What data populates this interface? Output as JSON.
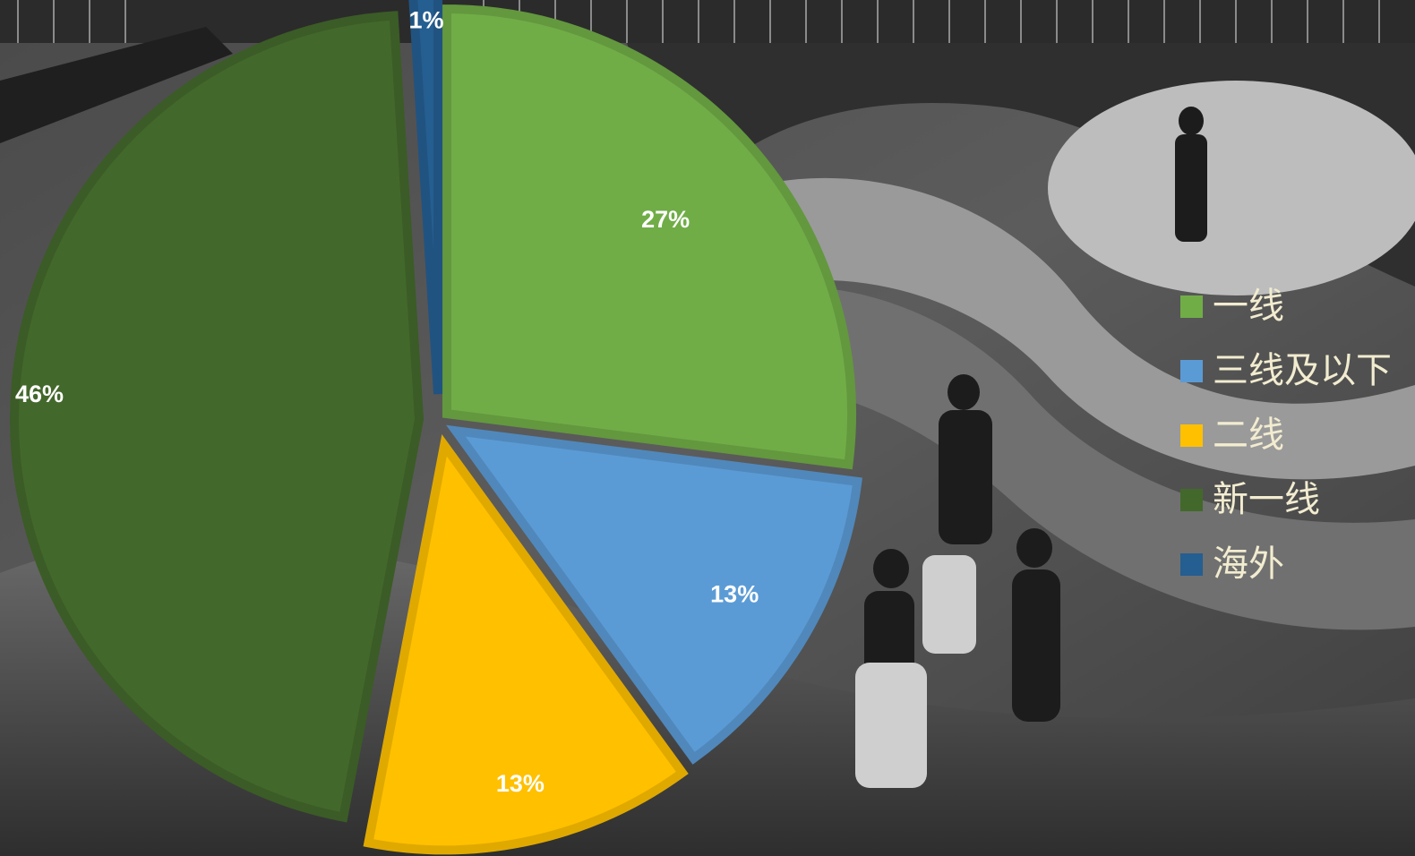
{
  "chart_data": {
    "type": "pie",
    "title": "",
    "slices": [
      {
        "label": "一线",
        "value": 27,
        "display": "27%",
        "color": "#70ad47"
      },
      {
        "label": "三线及以下",
        "value": 13,
        "display": "13%",
        "color": "#5b9bd5"
      },
      {
        "label": "二线",
        "value": 13,
        "display": "13%",
        "color": "#ffc000"
      },
      {
        "label": "新一线",
        "value": 46,
        "display": "46%",
        "color": "#43682b"
      },
      {
        "label": "海外",
        "value": 1,
        "display": "1%",
        "color": "#255e91"
      }
    ],
    "legend": {
      "position": "right",
      "items": [
        {
          "label": "一线",
          "color": "#70ad47"
        },
        {
          "label": "三线及以下",
          "color": "#5b9bd5"
        },
        {
          "label": "二线",
          "color": "#ffc000"
        },
        {
          "label": "新一线",
          "color": "#43682b"
        },
        {
          "label": "海外",
          "color": "#255e91"
        }
      ]
    },
    "exploded": true,
    "background": "grayscale-photo"
  }
}
